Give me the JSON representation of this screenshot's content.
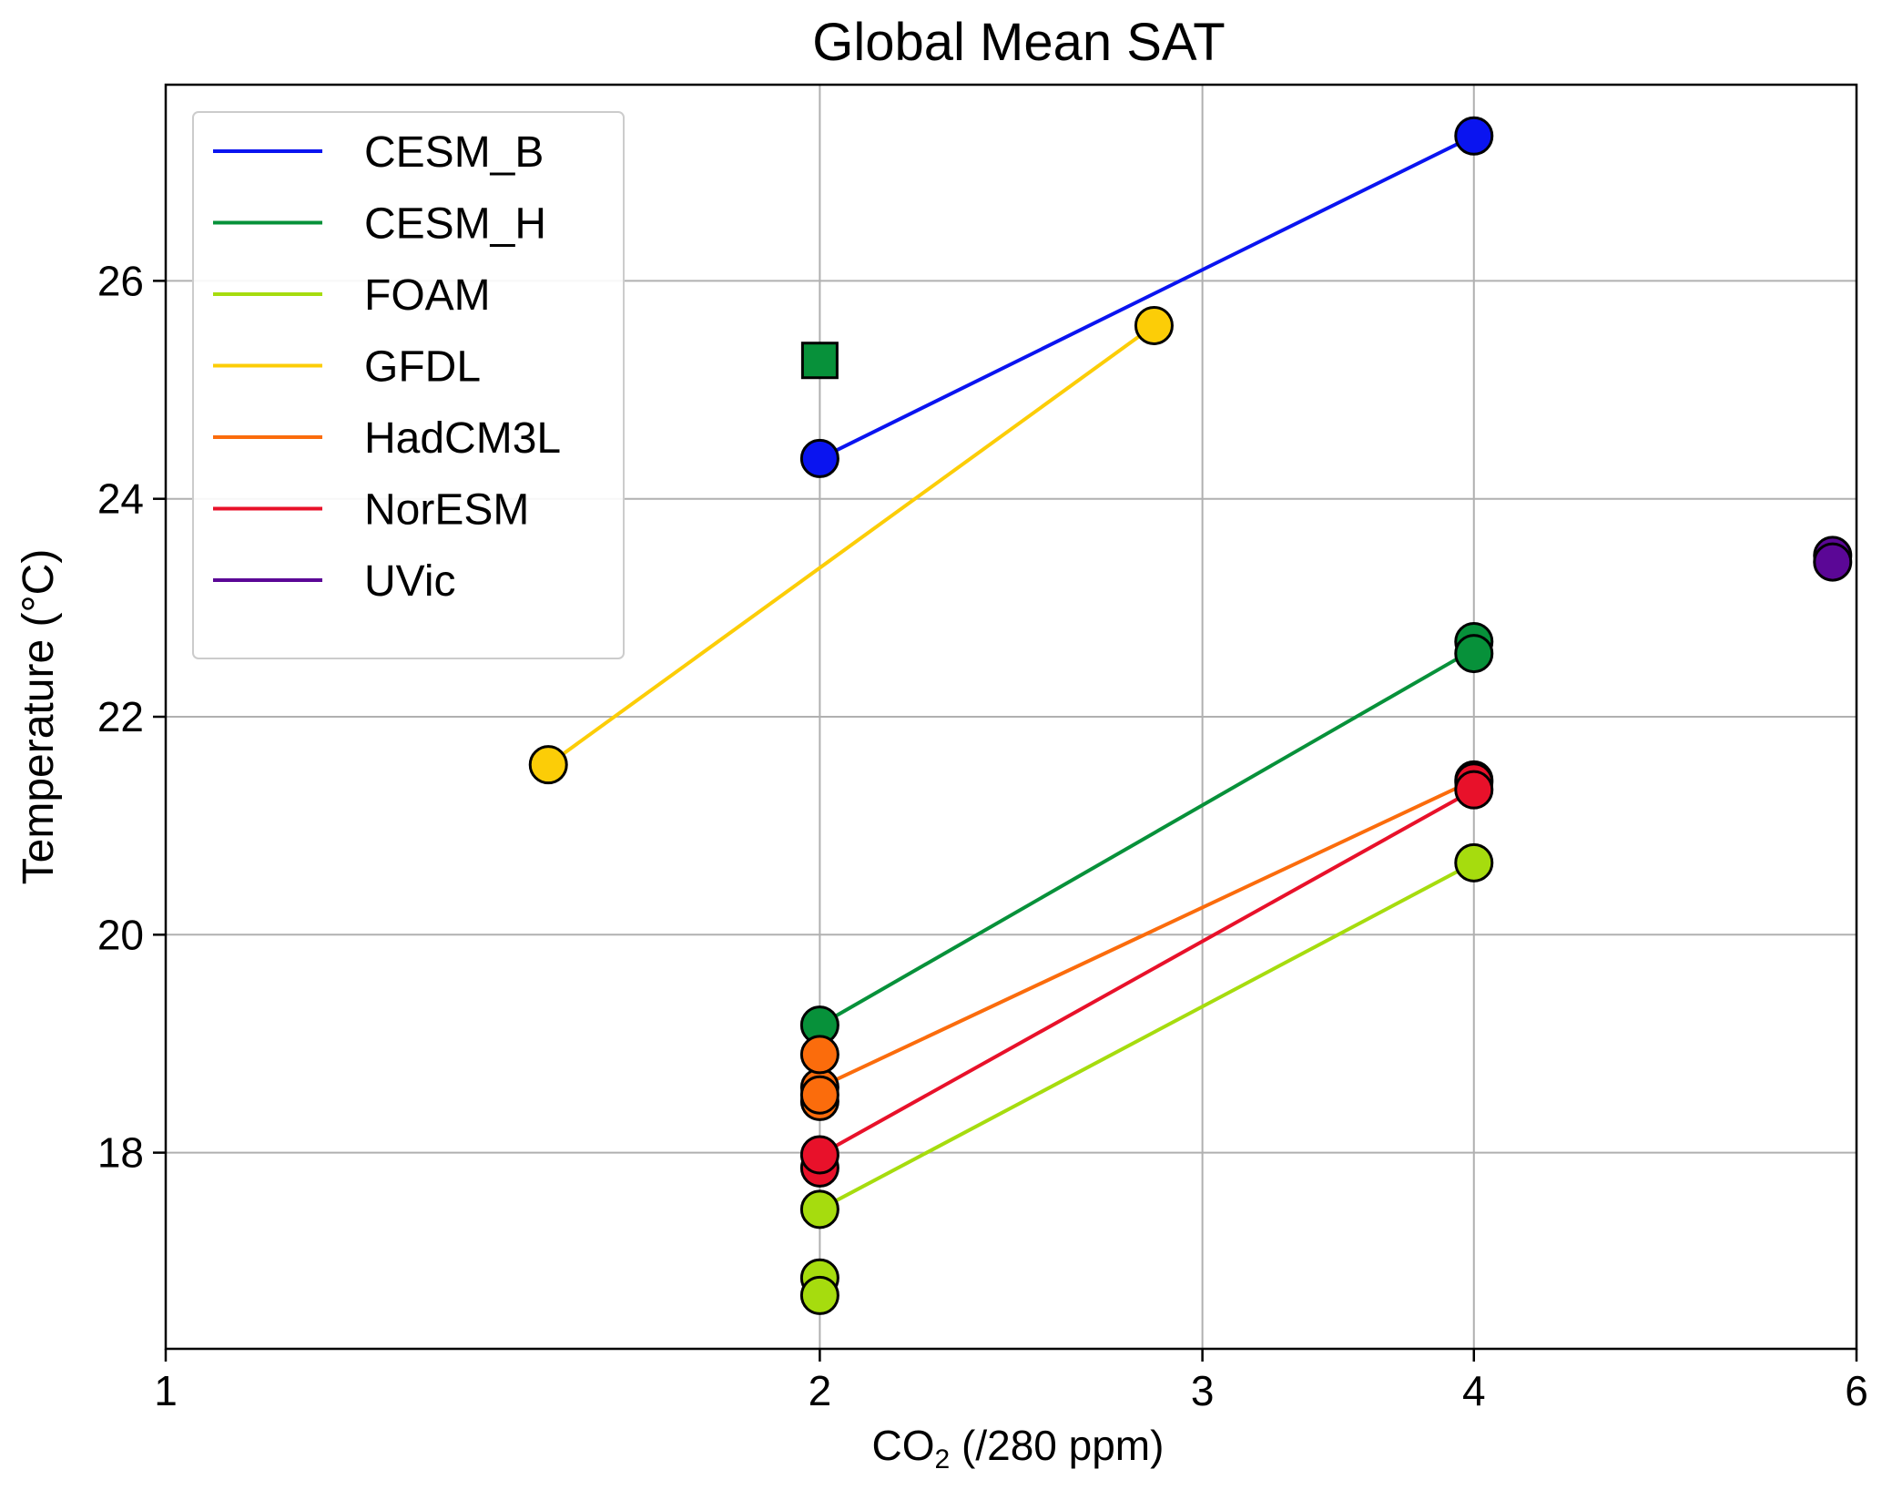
{
  "chart_data": {
    "type": "scatter",
    "title": "Global Mean SAT",
    "xlabel_main": "CO",
    "xlabel_sub": "2",
    "xlabel_rest": " (/280 ppm)",
    "ylabel": "Temperature (°C)",
    "xscale": "log",
    "xlim": [
      1,
      6
    ],
    "ylim": [
      16.2,
      27.8
    ],
    "xticks": [
      1,
      2,
      3,
      4,
      6
    ],
    "xtick_labels": [
      "1",
      "2",
      "3",
      "4",
      "6"
    ],
    "yticks": [
      18,
      20,
      22,
      24,
      26
    ],
    "ytick_labels": [
      "18",
      "20",
      "22",
      "24",
      "26"
    ],
    "grid": true,
    "legend_position": "top-left",
    "series": [
      {
        "name": "CESM_B",
        "color": "#0a14f0",
        "line": [
          [
            2,
            24.37
          ],
          [
            4,
            27.33
          ]
        ],
        "points": [
          [
            2,
            24.37
          ],
          [
            4,
            27.33
          ]
        ],
        "marker": "circle"
      },
      {
        "name": "CESM_H",
        "color": "#07913a",
        "line": [
          [
            2,
            19.17
          ],
          [
            4,
            22.62
          ]
        ],
        "points": [
          [
            2,
            19.17
          ],
          [
            4,
            22.69
          ],
          [
            4,
            22.58
          ]
        ],
        "marker": "circle",
        "extra_squares": [
          [
            2,
            25.27
          ]
        ]
      },
      {
        "name": "FOAM",
        "color": "#a6dc0e",
        "line": [
          [
            2,
            17.48
          ],
          [
            4,
            20.66
          ]
        ],
        "points": [
          [
            2,
            16.85
          ],
          [
            2,
            16.69
          ],
          [
            2,
            17.48
          ],
          [
            4,
            20.66
          ]
        ],
        "marker": "circle"
      },
      {
        "name": "GFDL",
        "color": "#fccd07",
        "line": [
          [
            1.5,
            21.56
          ],
          [
            2.85,
            25.59
          ]
        ],
        "points": [
          [
            1.5,
            21.56
          ],
          [
            2.85,
            25.59
          ]
        ],
        "marker": "circle"
      },
      {
        "name": "HadCM3L",
        "color": "#fb6c0c",
        "line": [
          [
            2,
            18.6
          ],
          [
            4,
            21.42
          ]
        ],
        "points": [
          [
            2,
            18.6
          ],
          [
            2,
            18.47
          ],
          [
            2,
            18.9
          ],
          [
            2,
            18.53
          ],
          [
            4,
            21.42
          ]
        ],
        "marker": "circle"
      },
      {
        "name": "NorESM",
        "color": "#e8112a",
        "line": [
          [
            2,
            17.98
          ],
          [
            4,
            21.33
          ]
        ],
        "points": [
          [
            2,
            17.86
          ],
          [
            2,
            17.98
          ],
          [
            4,
            21.4
          ],
          [
            4,
            21.33
          ]
        ],
        "marker": "circle"
      },
      {
        "name": "UVic",
        "color": "#5b0796",
        "line": [],
        "points": [
          [
            5.85,
            23.48
          ],
          [
            5.85,
            23.42
          ]
        ],
        "marker": "circle"
      }
    ]
  }
}
